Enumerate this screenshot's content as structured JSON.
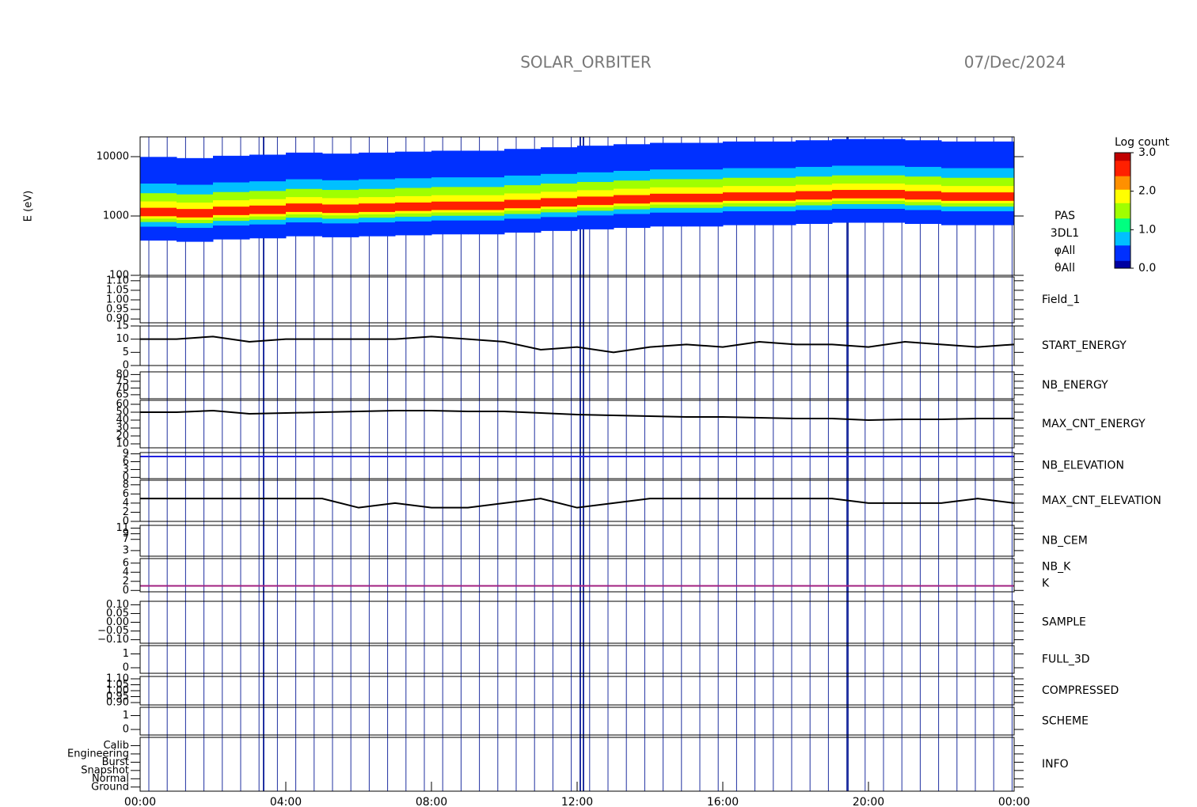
{
  "chart_data": {
    "type": "multi-panel",
    "title": "SOLAR_ORBITER",
    "date": "07/Dec/2024",
    "xlim": [
      0,
      24
    ],
    "xticks": [
      {
        "value": 0,
        "label": "00:00"
      },
      {
        "value": 4,
        "label": "04:00"
      },
      {
        "value": 8,
        "label": "08:00"
      },
      {
        "value": 12,
        "label": "12:00"
      },
      {
        "value": 16,
        "label": "16:00"
      },
      {
        "value": 20,
        "label": "20:00"
      },
      {
        "value": 24,
        "label": "00:00"
      }
    ],
    "x": [
      0,
      1,
      2,
      3,
      4,
      5,
      6,
      7,
      8,
      9,
      10,
      11,
      12,
      13,
      14,
      15,
      16,
      17,
      18,
      19,
      20,
      21,
      22,
      23,
      24
    ],
    "colorbar": {
      "title": "Log count",
      "lim": [
        0,
        3
      ],
      "ticks": [
        {
          "value": 0,
          "label": "0.0"
        },
        {
          "value": 1,
          "label": "1.0"
        },
        {
          "value": 2,
          "label": "2.0"
        },
        {
          "value": 3,
          "label": "3.0"
        }
      ],
      "colors": [
        "#0000a0",
        "#0030ff",
        "#00c0ff",
        "#00ff80",
        "#a0ff00",
        "#ffff00",
        "#ff9000",
        "#ff2000",
        "#c00000"
      ]
    },
    "panels": [
      {
        "type": "spectrogram",
        "ylabel": "E (eV)",
        "log": true,
        "ylim": [
          100,
          21544
        ],
        "yticks": [
          100,
          1000,
          10000
        ],
        "names": [
          {
            "text": "PAS",
            "color": "#000000"
          },
          {
            "text": "3DL1",
            "color": "#000000"
          },
          {
            "text": "φAll",
            "color": "#000000"
          },
          {
            "text": "θAll",
            "color": "#000000"
          }
        ],
        "values": [
          1100,
          1050,
          1150,
          1200,
          1300,
          1250,
          1300,
          1350,
          1400,
          1400,
          1500,
          1600,
          1700,
          1800,
          1900,
          1900,
          2000,
          2000,
          2100,
          2200,
          2200,
          2100,
          2000,
          2000
        ]
      },
      {
        "type": "empty",
        "ylim": [
          0.88,
          1.12
        ],
        "yticks": [
          {
            "value": 0.9,
            "label": "0.90"
          },
          {
            "value": 0.95,
            "label": "0.95"
          },
          {
            "value": 1,
            "label": "1.00"
          },
          {
            "value": 1.05,
            "label": "1.05"
          },
          {
            "value": 1.1,
            "label": "1.10"
          }
        ],
        "names": [
          {
            "text": "Field_1",
            "color": "#2020c0"
          }
        ]
      },
      {
        "type": "line",
        "ylim": [
          0,
          15
        ],
        "yticks": [
          0,
          5,
          10,
          15
        ],
        "color": "#000000",
        "names": [
          {
            "text": "START_ENERGY",
            "color": "#000000"
          }
        ],
        "values": [
          10,
          10,
          11,
          9,
          10,
          10,
          10,
          10,
          11,
          10,
          9,
          6,
          7,
          5,
          7,
          8,
          7,
          9,
          8,
          8,
          7,
          9,
          8,
          7,
          8
        ]
      },
      {
        "type": "empty",
        "ylim": [
          62,
          82
        ],
        "yticks": [
          65,
          70,
          75,
          80
        ],
        "names": [
          {
            "text": "NB_ENERGY",
            "color": "#2020c0"
          }
        ]
      },
      {
        "type": "line",
        "ylim": [
          5,
          65
        ],
        "yticks": [
          10,
          20,
          30,
          40,
          50,
          60
        ],
        "color": "#000000",
        "names": [
          {
            "text": "MAX_CNT_ENERGY",
            "color": "#000000"
          }
        ],
        "values": [
          50,
          50,
          52,
          48,
          49,
          50,
          51,
          52,
          52,
          51,
          51,
          49,
          47,
          46,
          45,
          44,
          44,
          43,
          42,
          42,
          40,
          41,
          41,
          42,
          42
        ]
      },
      {
        "type": "line",
        "ylim": [
          -0.5,
          9.5
        ],
        "yticks": [
          0,
          3,
          6,
          9
        ],
        "color": "#2020e0",
        "names": [
          {
            "text": "NB_ELEVATION",
            "color": "#2020c0"
          }
        ],
        "values": [
          8,
          8,
          8,
          8,
          8,
          8,
          8,
          8,
          8,
          8,
          8,
          8,
          8,
          8,
          8,
          8,
          8,
          8,
          8,
          8,
          8,
          8,
          8,
          8,
          8
        ]
      },
      {
        "type": "line",
        "ylim": [
          0,
          9
        ],
        "yticks": [
          0,
          2,
          4,
          6,
          8
        ],
        "color": "#000000",
        "names": [
          {
            "text": "MAX_CNT_ELEVATION",
            "color": "#000000"
          }
        ],
        "values": [
          5,
          5,
          5,
          5,
          5,
          5,
          3,
          4,
          3,
          3,
          4,
          5,
          3,
          4,
          5,
          5,
          5,
          5,
          5,
          5,
          4,
          4,
          4,
          5,
          4
        ]
      },
      {
        "type": "empty",
        "ylim": [
          1,
          12
        ],
        "yticks": [
          3,
          7,
          9,
          11
        ],
        "names": [
          {
            "text": "NB_CEM",
            "color": "#2020c0"
          }
        ]
      },
      {
        "type": "line",
        "ylim": [
          -0.3,
          7
        ],
        "yticks": [
          0,
          2,
          4,
          6
        ],
        "color": "#a02080",
        "names": [
          {
            "text": "NB_K",
            "color": "#c02020"
          },
          {
            "text": "K",
            "color": "#2020c0"
          }
        ],
        "values": [
          1,
          1,
          1,
          1,
          1,
          1,
          1,
          1,
          1,
          1,
          1,
          1,
          1,
          1,
          1,
          1,
          1,
          1,
          1,
          1,
          1,
          1,
          1,
          1,
          1
        ]
      },
      {
        "type": "empty",
        "ylim": [
          -0.12,
          0.12
        ],
        "yticks": [
          {
            "value": -0.1,
            "label": "−0.10"
          },
          {
            "value": -0.05,
            "label": "−0.05"
          },
          {
            "value": 0,
            "label": "0.00"
          },
          {
            "value": 0.05,
            "label": "0.05"
          },
          {
            "value": 0.1,
            "label": "0.10"
          }
        ],
        "names": [
          {
            "text": "SAMPLE",
            "color": "#2020c0"
          }
        ]
      },
      {
        "type": "empty",
        "ylim": [
          -0.4,
          1.6
        ],
        "yticks": [
          0,
          1
        ],
        "names": [
          {
            "text": "FULL_3D",
            "color": "#2020c0"
          }
        ]
      },
      {
        "type": "empty",
        "ylim": [
          0.88,
          1.12
        ],
        "yticks": [
          {
            "value": 0.9,
            "label": "0.90"
          },
          {
            "value": 0.95,
            "label": "0.95"
          },
          {
            "value": 1,
            "label": "1.00"
          },
          {
            "value": 1.05,
            "label": "1.05"
          },
          {
            "value": 1.1,
            "label": "1.10"
          }
        ],
        "names": [
          {
            "text": "COMPRESSED",
            "color": "#000000"
          }
        ]
      },
      {
        "type": "empty",
        "ylim": [
          -0.4,
          1.6
        ],
        "yticks": [
          0,
          1
        ],
        "names": [
          {
            "text": "SCHEME",
            "color": "#000000"
          }
        ]
      },
      {
        "type": "empty",
        "ylim": [
          -0.5,
          6
        ],
        "yticks": [
          {
            "value": 0,
            "label": "Ground"
          },
          {
            "value": 1,
            "label": "Normal"
          },
          {
            "value": 2,
            "label": "Snapshot"
          },
          {
            "value": 3,
            "label": "Burst"
          },
          {
            "value": 4,
            "label": "Engineering"
          },
          {
            "value": 5,
            "label": "Calib"
          }
        ],
        "names": [
          {
            "text": "INFO",
            "color": "#000000"
          }
        ]
      }
    ]
  }
}
